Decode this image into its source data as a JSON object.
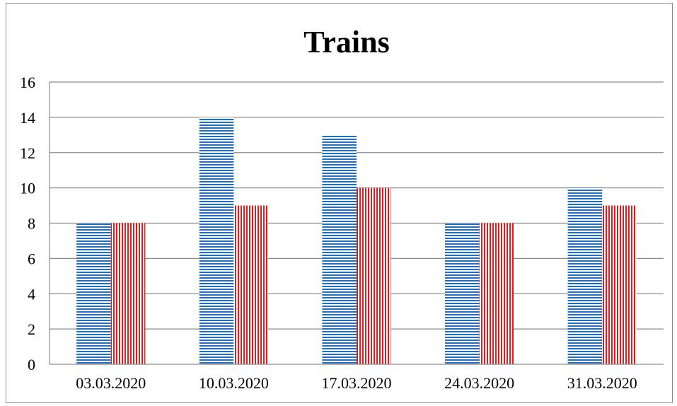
{
  "chart_data": {
    "type": "bar",
    "title": "Trains",
    "xlabel": "",
    "ylabel": "",
    "categories": [
      "03.03.2020",
      "10.03.2020",
      "17.03.2020",
      "24.03.2020",
      "31.03.2020"
    ],
    "series": [
      {
        "values": [
          8,
          14,
          13,
          8,
          10
        ],
        "color": "#1f6fbf",
        "pattern": "horizontal-stripes"
      },
      {
        "values": [
          8,
          9,
          10,
          8,
          9
        ],
        "color": "#e01b1b",
        "pattern": "vertical-stripes"
      }
    ],
    "ylim": [
      0,
      16
    ],
    "yticks": [
      0,
      2,
      4,
      6,
      8,
      10,
      12,
      14,
      16
    ],
    "grid": true,
    "legend": "none"
  }
}
